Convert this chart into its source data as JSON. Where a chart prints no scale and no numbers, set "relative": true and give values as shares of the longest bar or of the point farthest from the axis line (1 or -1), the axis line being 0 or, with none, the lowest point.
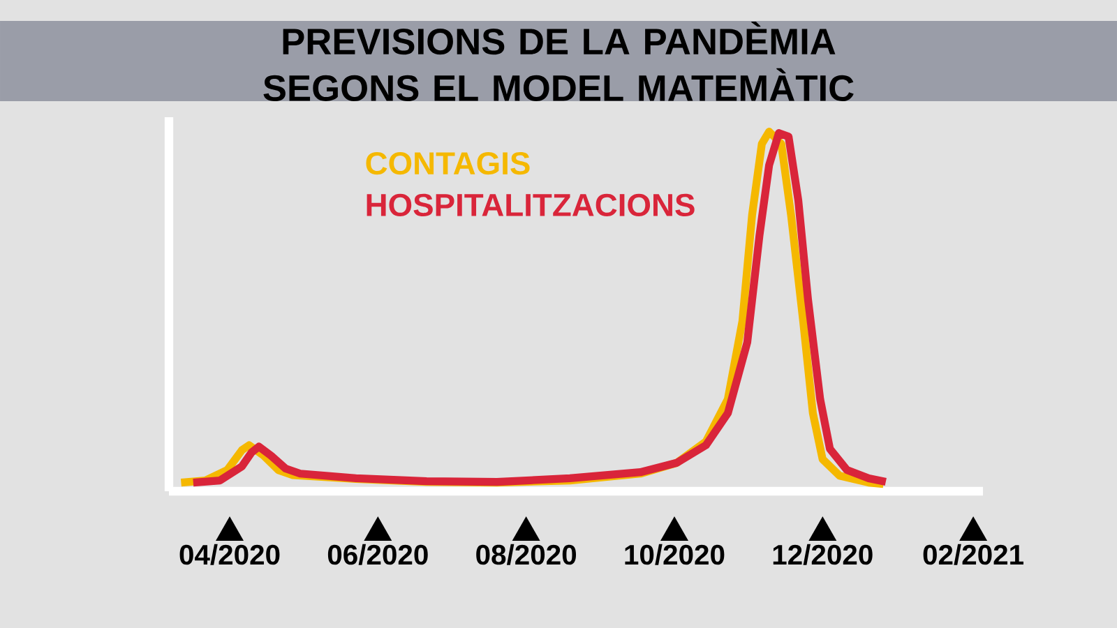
{
  "chart_data": {
    "type": "line",
    "title": "PREVISIONS DE LA PANDÈMIA SEGONS EL MODEL MATEMÀTIC",
    "relative": true,
    "legend": "top left",
    "xlim": [
      "2020-03-07",
      "2021-02-05"
    ],
    "xticks": [
      {
        "value": "2020-04-01",
        "label": "04/2020"
      },
      {
        "value": "2020-06-01",
        "label": "06/2020"
      },
      {
        "value": "2020-08-01",
        "label": "08/2020"
      },
      {
        "value": "2020-10-01",
        "label": "10/2020"
      },
      {
        "value": "2020-12-01",
        "label": "12/2020"
      },
      {
        "value": "2021-02-01",
        "label": "02/2021"
      }
    ],
    "series": [
      {
        "name": "CONTAGIS",
        "color": "#f5b800",
        "x": [
          "2020-03-12",
          "2020-03-22",
          "2020-03-31",
          "2020-04-06",
          "2020-04-09",
          "2020-04-15",
          "2020-04-21",
          "2020-04-27",
          "2020-05-23",
          "2020-06-21",
          "2020-07-20",
          "2020-08-19",
          "2020-09-17",
          "2020-10-02",
          "2020-10-14",
          "2020-10-23",
          "2020-10-29",
          "2020-11-02",
          "2020-11-06",
          "2020-11-09",
          "2020-11-14",
          "2020-11-18",
          "2020-11-23",
          "2020-11-27",
          "2020-12-01",
          "2020-12-08",
          "2020-12-20",
          "2020-12-26"
        ],
        "values": [
          0.024,
          0.03,
          0.059,
          0.114,
          0.128,
          0.099,
          0.059,
          0.045,
          0.034,
          0.026,
          0.024,
          0.03,
          0.049,
          0.079,
          0.138,
          0.256,
          0.473,
          0.769,
          0.966,
          1,
          0.966,
          0.769,
          0.473,
          0.217,
          0.089,
          0.043,
          0.024,
          0.02
        ]
      },
      {
        "name": "HOSPITALITZACIONS",
        "color": "#d9253a",
        "x": [
          "2020-03-17",
          "2020-03-28",
          "2020-04-06",
          "2020-04-10",
          "2020-04-13",
          "2020-04-18",
          "2020-04-24",
          "2020-04-30",
          "2020-05-23",
          "2020-06-21",
          "2020-07-20",
          "2020-08-19",
          "2020-09-17",
          "2020-10-02",
          "2020-10-14",
          "2020-10-23",
          "2020-10-31",
          "2020-11-05",
          "2020-11-09",
          "2020-11-13",
          "2020-11-17",
          "2020-11-21",
          "2020-11-25",
          "2020-11-30",
          "2020-12-04",
          "2020-12-11",
          "2020-12-20",
          "2020-12-27"
        ],
        "values": [
          0.024,
          0.03,
          0.069,
          0.108,
          0.124,
          0.099,
          0.063,
          0.049,
          0.036,
          0.028,
          0.026,
          0.036,
          0.053,
          0.079,
          0.128,
          0.217,
          0.414,
          0.71,
          0.907,
          0.996,
          0.986,
          0.809,
          0.533,
          0.256,
          0.118,
          0.059,
          0.036,
          0.026
        ]
      }
    ]
  }
}
